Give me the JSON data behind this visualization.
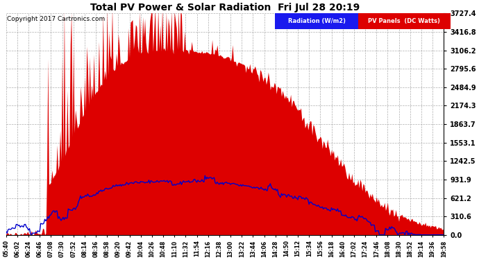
{
  "title": "Total PV Power & Solar Radiation  Fri Jul 28 20:19",
  "copyright": "Copyright 2017 Cartronics.com",
  "legend_radiation": "Radiation (W/m2)",
  "legend_pv": "PV Panels  (DC Watts)",
  "y_max": 3727.4,
  "y_ticks": [
    0.0,
    310.6,
    621.2,
    931.9,
    1242.5,
    1553.1,
    1863.7,
    2174.3,
    2484.9,
    2795.6,
    3106.2,
    3416.8,
    3727.4
  ],
  "background_color": "#ffffff",
  "pv_color": "#dd0000",
  "radiation_color": "#0000cc",
  "grid_color": "#aaaaaa",
  "xtick_labels": [
    "05:40",
    "06:02",
    "06:24",
    "06:46",
    "07:08",
    "07:30",
    "07:52",
    "08:14",
    "08:36",
    "08:58",
    "09:20",
    "09:42",
    "10:04",
    "10:26",
    "10:48",
    "11:10",
    "11:32",
    "11:54",
    "12:16",
    "12:38",
    "13:00",
    "13:22",
    "13:44",
    "14:06",
    "14:28",
    "14:50",
    "15:12",
    "15:34",
    "15:56",
    "16:18",
    "16:40",
    "17:02",
    "17:24",
    "17:46",
    "18:08",
    "18:30",
    "18:52",
    "19:14",
    "19:36",
    "19:58"
  ]
}
